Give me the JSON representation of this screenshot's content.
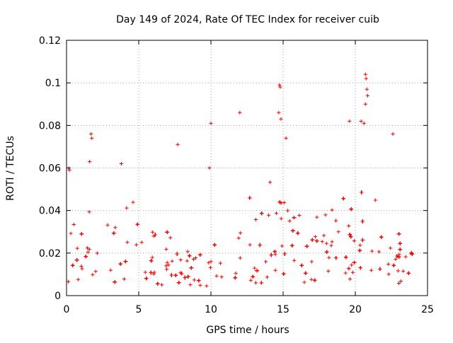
{
  "chart_data": {
    "type": "scatter",
    "title": "Day 149 of 2024, Rate Of TEC Index for receiver cuib",
    "xlabel": "GPS time / hours",
    "ylabel": "ROTI / TECUs",
    "xlim": [
      0,
      25
    ],
    "ylim": [
      0,
      0.12
    ],
    "x_ticks": [
      0,
      5,
      10,
      15,
      20,
      25
    ],
    "x_tick_labels": [
      "0",
      "5",
      "10",
      "15",
      "20",
      "25"
    ],
    "y_ticks": [
      0,
      0.02,
      0.04,
      0.06,
      0.08,
      0.1,
      0.12
    ],
    "y_tick_labels": [
      "0",
      "0.02",
      "0.04",
      "0.06",
      "0.08",
      "0.1",
      "0.12"
    ],
    "grid": true,
    "marker": "+",
    "series_color": "#ff0000",
    "series": [
      {
        "name": "ROTI",
        "density_profile": {
          "description": "approximate envelope of dense scatter, per hour: [hour, min_value, typical_max_value]",
          "envelope": [
            [
              0,
              0.006,
              0.03
            ],
            [
              1,
              0.006,
              0.04
            ],
            [
              2,
              0.006,
              0.045
            ],
            [
              3,
              0.006,
              0.04
            ],
            [
              4,
              0.006,
              0.045
            ],
            [
              5,
              0.005,
              0.035
            ],
            [
              6,
              0.005,
              0.03
            ],
            [
              7,
              0.005,
              0.03
            ],
            [
              8,
              0.004,
              0.025
            ],
            [
              9,
              0.003,
              0.022
            ],
            [
              10,
              0.004,
              0.025
            ],
            [
              11,
              0.005,
              0.03
            ],
            [
              12,
              0.006,
              0.035
            ],
            [
              13,
              0.006,
              0.04
            ],
            [
              14,
              0.006,
              0.045
            ],
            [
              15,
              0.006,
              0.045
            ],
            [
              16,
              0.006,
              0.04
            ],
            [
              17,
              0.006,
              0.04
            ],
            [
              18,
              0.006,
              0.04
            ],
            [
              19,
              0.006,
              0.045
            ],
            [
              20,
              0.006,
              0.05
            ],
            [
              21,
              0.006,
              0.05
            ],
            [
              22,
              0.005,
              0.04
            ],
            [
              23,
              0.005,
              0.035
            ],
            [
              24,
              0.005,
              0.025
            ]
          ]
        },
        "outliers": [
          [
            0.15,
            0.06
          ],
          [
            0.2,
            0.059
          ],
          [
            1.7,
            0.076
          ],
          [
            1.75,
            0.074
          ],
          [
            1.6,
            0.063
          ],
          [
            3.8,
            0.062
          ],
          [
            7.7,
            0.071
          ],
          [
            9.9,
            0.06
          ],
          [
            10.0,
            0.081
          ],
          [
            12.0,
            0.086
          ],
          [
            14.75,
            0.099
          ],
          [
            14.8,
            0.098
          ],
          [
            14.7,
            0.086
          ],
          [
            14.85,
            0.083
          ],
          [
            15.2,
            0.074
          ],
          [
            19.6,
            0.082
          ],
          [
            20.4,
            0.082
          ],
          [
            20.7,
            0.104
          ],
          [
            20.75,
            0.102
          ],
          [
            20.8,
            0.097
          ],
          [
            20.85,
            0.094
          ],
          [
            20.7,
            0.09
          ],
          [
            20.6,
            0.081
          ],
          [
            22.6,
            0.076
          ]
        ]
      }
    ]
  }
}
